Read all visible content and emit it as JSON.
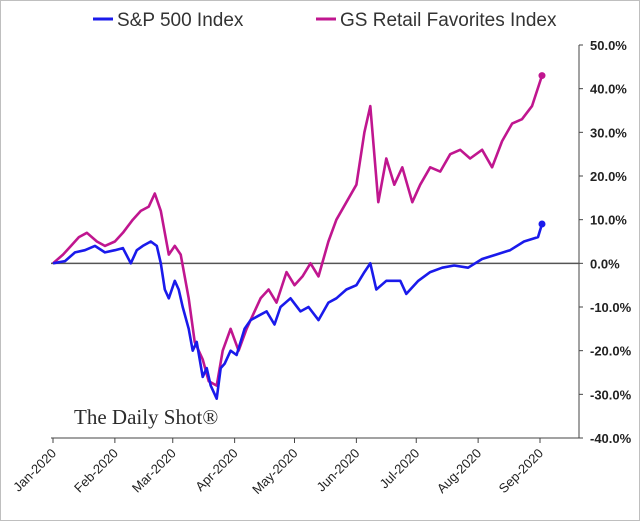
{
  "chart_data": {
    "type": "line",
    "title": "",
    "xlabel": "",
    "ylabel": "",
    "x_ticks": [
      "Jan-2020",
      "Feb-2020",
      "Mar-2020",
      "Apr-2020",
      "May-2020",
      "Jun-2020",
      "Jul-2020",
      "Aug-2020",
      "Sep-2020"
    ],
    "y_ticks": [
      "50.0%",
      "40.0%",
      "30.0%",
      "20.0%",
      "10.0%",
      "0.0%",
      "-10.0%",
      "-20.0%",
      "-30.0%",
      "-40.0%"
    ],
    "ylim": [
      -40,
      50
    ],
    "y_axis_side": "right",
    "legend_position": "top",
    "watermark": "The Daily Shot®",
    "series": [
      {
        "name": "S&P 500 Index",
        "color": "#1a1aeb",
        "points": [
          [
            "2020-01-01",
            0
          ],
          [
            "2020-01-07",
            0.5
          ],
          [
            "2020-01-12",
            2.5
          ],
          [
            "2020-01-17",
            3
          ],
          [
            "2020-01-22",
            4
          ],
          [
            "2020-01-27",
            2.5
          ],
          [
            "2020-02-01",
            3
          ],
          [
            "2020-02-05",
            3.5
          ],
          [
            "2020-02-09",
            0
          ],
          [
            "2020-02-12",
            3
          ],
          [
            "2020-02-15",
            4
          ],
          [
            "2020-02-19",
            5
          ],
          [
            "2020-02-22",
            4
          ],
          [
            "2020-02-24",
            0
          ],
          [
            "2020-02-26",
            -6
          ],
          [
            "2020-02-28",
            -8
          ],
          [
            "2020-03-02",
            -4
          ],
          [
            "2020-03-04",
            -6
          ],
          [
            "2020-03-06",
            -10
          ],
          [
            "2020-03-09",
            -15
          ],
          [
            "2020-03-11",
            -20
          ],
          [
            "2020-03-13",
            -18
          ],
          [
            "2020-03-16",
            -26
          ],
          [
            "2020-03-18",
            -24
          ],
          [
            "2020-03-20",
            -28
          ],
          [
            "2020-03-23",
            -31
          ],
          [
            "2020-03-25",
            -24
          ],
          [
            "2020-03-27",
            -23
          ],
          [
            "2020-03-30",
            -20
          ],
          [
            "2020-04-02",
            -21
          ],
          [
            "2020-04-06",
            -15
          ],
          [
            "2020-04-09",
            -13
          ],
          [
            "2020-04-13",
            -12
          ],
          [
            "2020-04-17",
            -11
          ],
          [
            "2020-04-21",
            -14
          ],
          [
            "2020-04-24",
            -10
          ],
          [
            "2020-04-29",
            -8
          ],
          [
            "2020-05-04",
            -11
          ],
          [
            "2020-05-08",
            -10
          ],
          [
            "2020-05-13",
            -13
          ],
          [
            "2020-05-18",
            -9
          ],
          [
            "2020-05-22",
            -8
          ],
          [
            "2020-05-27",
            -6
          ],
          [
            "2020-06-01",
            -5
          ],
          [
            "2020-06-05",
            -2
          ],
          [
            "2020-06-08",
            0
          ],
          [
            "2020-06-11",
            -6
          ],
          [
            "2020-06-16",
            -4
          ],
          [
            "2020-06-23",
            -4
          ],
          [
            "2020-06-26",
            -7
          ],
          [
            "2020-07-02",
            -4
          ],
          [
            "2020-07-08",
            -2
          ],
          [
            "2020-07-14",
            -1
          ],
          [
            "2020-07-20",
            -0.5
          ],
          [
            "2020-07-27",
            -1
          ],
          [
            "2020-08-03",
            1
          ],
          [
            "2020-08-10",
            2
          ],
          [
            "2020-08-17",
            3
          ],
          [
            "2020-08-24",
            5
          ],
          [
            "2020-08-31",
            6
          ],
          [
            "2020-09-02",
            9
          ]
        ]
      },
      {
        "name": "GS Retail Favorites Index",
        "color": "#c0168f",
        "points": [
          [
            "2020-01-01",
            0
          ],
          [
            "2020-01-06",
            2
          ],
          [
            "2020-01-10",
            4
          ],
          [
            "2020-01-14",
            6
          ],
          [
            "2020-01-18",
            7
          ],
          [
            "2020-01-23",
            5
          ],
          [
            "2020-01-27",
            4
          ],
          [
            "2020-02-01",
            5
          ],
          [
            "2020-02-05",
            7
          ],
          [
            "2020-02-10",
            10
          ],
          [
            "2020-02-14",
            12
          ],
          [
            "2020-02-18",
            13
          ],
          [
            "2020-02-21",
            16
          ],
          [
            "2020-02-24",
            12
          ],
          [
            "2020-02-26",
            7
          ],
          [
            "2020-02-28",
            2
          ],
          [
            "2020-03-02",
            4
          ],
          [
            "2020-03-05",
            2
          ],
          [
            "2020-03-09",
            -8
          ],
          [
            "2020-03-12",
            -18
          ],
          [
            "2020-03-16",
            -22
          ],
          [
            "2020-03-19",
            -27
          ],
          [
            "2020-03-23",
            -28
          ],
          [
            "2020-03-26",
            -20
          ],
          [
            "2020-03-30",
            -15
          ],
          [
            "2020-04-03",
            -20
          ],
          [
            "2020-04-07",
            -15
          ],
          [
            "2020-04-10",
            -12
          ],
          [
            "2020-04-14",
            -8
          ],
          [
            "2020-04-18",
            -6
          ],
          [
            "2020-04-22",
            -9
          ],
          [
            "2020-04-27",
            -2
          ],
          [
            "2020-05-01",
            -5
          ],
          [
            "2020-05-05",
            -3
          ],
          [
            "2020-05-09",
            0
          ],
          [
            "2020-05-13",
            -3
          ],
          [
            "2020-05-18",
            5
          ],
          [
            "2020-05-22",
            10
          ],
          [
            "2020-05-27",
            14
          ],
          [
            "2020-06-01",
            18
          ],
          [
            "2020-06-05",
            30
          ],
          [
            "2020-06-08",
            36
          ],
          [
            "2020-06-12",
            14
          ],
          [
            "2020-06-16",
            24
          ],
          [
            "2020-06-20",
            18
          ],
          [
            "2020-06-24",
            22
          ],
          [
            "2020-06-29",
            14
          ],
          [
            "2020-07-03",
            18
          ],
          [
            "2020-07-08",
            22
          ],
          [
            "2020-07-13",
            21
          ],
          [
            "2020-07-18",
            25
          ],
          [
            "2020-07-23",
            26
          ],
          [
            "2020-07-28",
            24
          ],
          [
            "2020-08-03",
            26
          ],
          [
            "2020-08-08",
            22
          ],
          [
            "2020-08-13",
            28
          ],
          [
            "2020-08-18",
            32
          ],
          [
            "2020-08-23",
            33
          ],
          [
            "2020-08-28",
            36
          ],
          [
            "2020-09-02",
            43
          ]
        ]
      }
    ]
  }
}
